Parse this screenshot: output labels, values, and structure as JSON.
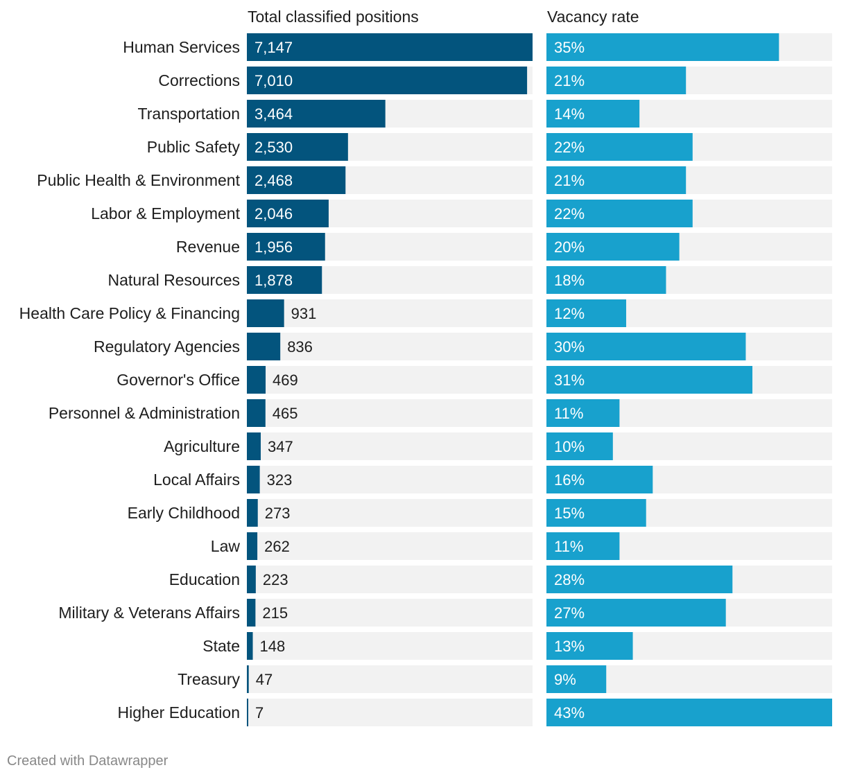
{
  "chart_data": {
    "type": "bar",
    "orientation": "horizontal",
    "categories": [
      "Human Services",
      "Corrections",
      "Transportation",
      "Public Safety",
      "Public Health & Environment",
      "Labor & Employment",
      "Revenue",
      "Natural Resources",
      "Health Care Policy & Financing",
      "Regulatory Agencies",
      "Governor's Office",
      "Personnel & Administration",
      "Agriculture",
      "Local Affairs",
      "Early Childhood",
      "Law",
      "Education",
      "Military & Veterans Affairs",
      "State",
      "Treasury",
      "Higher Education"
    ],
    "series": [
      {
        "name": "Total classified positions",
        "values": [
          7147,
          7010,
          3464,
          2530,
          2468,
          2046,
          1956,
          1878,
          931,
          836,
          469,
          465,
          347,
          323,
          273,
          262,
          223,
          215,
          148,
          47,
          7
        ],
        "labels": [
          "7,147",
          "7,010",
          "3,464",
          "2,530",
          "2,468",
          "2,046",
          "1,956",
          "1,878",
          "931",
          "836",
          "469",
          "465",
          "347",
          "323",
          "273",
          "262",
          "223",
          "215",
          "148",
          "47",
          "7"
        ],
        "xlim": [
          0,
          7147
        ],
        "color": "#03547d"
      },
      {
        "name": "Vacancy rate",
        "values": [
          35,
          21,
          14,
          22,
          21,
          22,
          20,
          18,
          12,
          30,
          31,
          11,
          10,
          16,
          15,
          11,
          28,
          27,
          13,
          9,
          43
        ],
        "labels": [
          "35%",
          "21%",
          "14%",
          "22%",
          "21%",
          "22%",
          "20%",
          "18%",
          "12%",
          "30%",
          "31%",
          "11%",
          "10%",
          "16%",
          "15%",
          "11%",
          "28%",
          "27%",
          "13%",
          "9%",
          "43%"
        ],
        "xlim": [
          0,
          43
        ],
        "color": "#18a1cd"
      }
    ],
    "track_color": "#f2f2f2",
    "grid": false,
    "legend": "none"
  },
  "footer": {
    "credit": "Created with Datawrapper"
  }
}
